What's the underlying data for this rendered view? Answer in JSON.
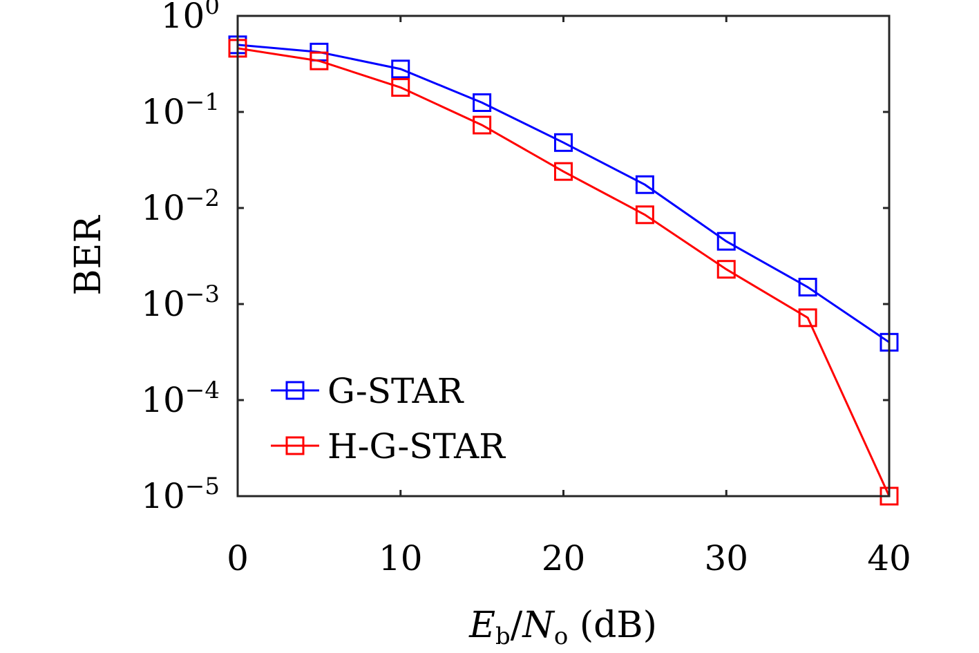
{
  "chart_data": {
    "type": "line",
    "xlabel": {
      "main": "E",
      "sub1": "b",
      "slash": "/",
      "main2": "N",
      "sub2": "o",
      "unit": " (dB)"
    },
    "ylabel": "BER",
    "xlim": [
      0,
      40
    ],
    "ylim": [
      1e-05,
      1
    ],
    "yscale": "log",
    "x": [
      0,
      5,
      10,
      15,
      20,
      25,
      30,
      35,
      40
    ],
    "x_ticks": [
      "0",
      "10",
      "20",
      "30",
      "40"
    ],
    "y_ticks": [
      {
        "base": "10",
        "exp": "0"
      },
      {
        "base": "10",
        "exp": "−1"
      },
      {
        "base": "10",
        "exp": "−2"
      },
      {
        "base": "10",
        "exp": "−3"
      },
      {
        "base": "10",
        "exp": "−4"
      },
      {
        "base": "10",
        "exp": "−5"
      }
    ],
    "series": [
      {
        "name": "G-STAR",
        "color": "#0000ff",
        "marker": "square",
        "values": [
          0.5,
          0.42,
          0.28,
          0.125,
          0.048,
          0.0175,
          0.0045,
          0.0015,
          0.0004
        ]
      },
      {
        "name": "H-G-STAR",
        "color": "#ff0000",
        "marker": "square",
        "values": [
          0.46,
          0.34,
          0.18,
          0.073,
          0.024,
          0.0085,
          0.0023,
          0.00072,
          1e-05
        ]
      }
    ],
    "legend": {
      "position": "bottom-left"
    },
    "grid": false
  }
}
